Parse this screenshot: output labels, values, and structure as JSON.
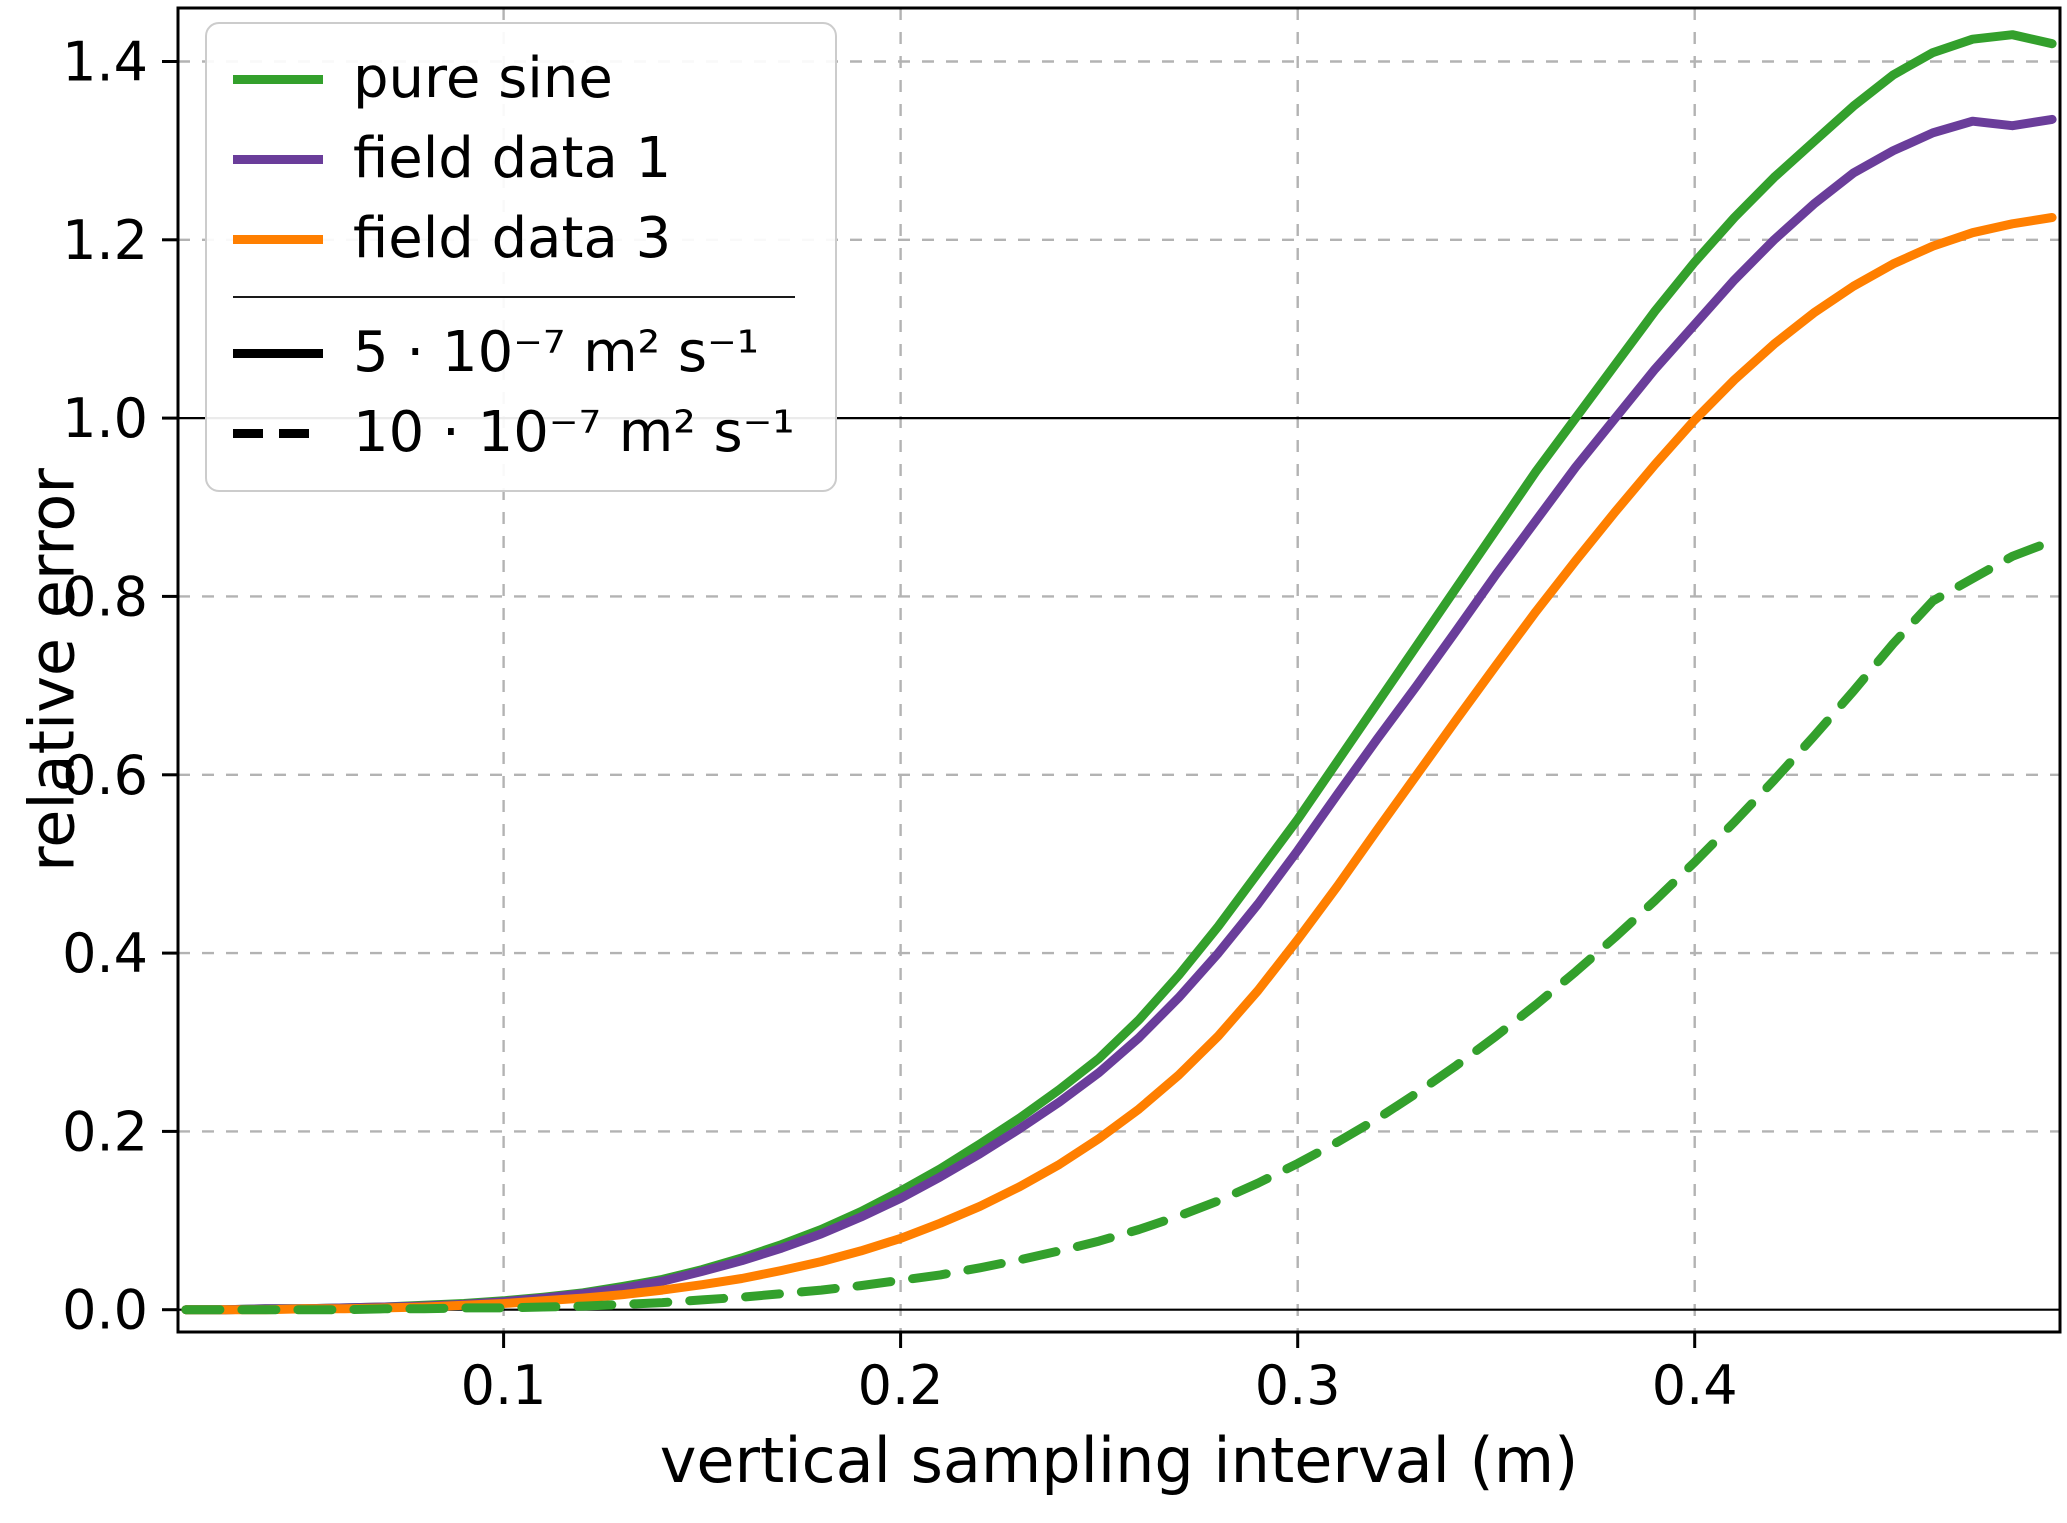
{
  "figure": {
    "background": "#ffffff"
  },
  "legend": {
    "series_items": [
      {
        "label": "pure sine",
        "color": "#33a02c",
        "style": "solid"
      },
      {
        "label": "field data 1",
        "color": "#6a3d9a",
        "style": "solid"
      },
      {
        "label": "field data 3",
        "color": "#ff7f00",
        "style": "solid"
      }
    ],
    "style_items": [
      {
        "label": "5 · 10⁻⁷ m² s⁻¹",
        "color": "#000000",
        "style": "solid"
      },
      {
        "label": "10 · 10⁻⁷ m² s⁻¹",
        "color": "#000000",
        "style": "dashed"
      }
    ]
  },
  "chart_data": {
    "type": "line",
    "title": "",
    "xlabel": "vertical sampling interval (m)",
    "ylabel": "relative error",
    "xlim": [
      0.018,
      0.492
    ],
    "ylim": [
      -0.025,
      1.46
    ],
    "xticks": [
      0.1,
      0.2,
      0.3,
      0.4
    ],
    "xtick_labels": [
      "0.1",
      "0.2",
      "0.3",
      "0.4"
    ],
    "yticks": [
      0.0,
      0.2,
      0.4,
      0.6,
      0.8,
      1.0,
      1.2,
      1.4
    ],
    "ytick_labels": [
      "0.0",
      "0.2",
      "0.4",
      "0.6",
      "0.8",
      "1.0",
      "1.2",
      "1.4"
    ],
    "grid": {
      "dashed_color": "#b3b3b3",
      "solid_lines_y": [
        0.0,
        1.0
      ],
      "legend_position": "upper left"
    },
    "x": [
      0.02,
      0.03,
      0.04,
      0.05,
      0.06,
      0.07,
      0.08,
      0.09,
      0.1,
      0.11,
      0.12,
      0.13,
      0.14,
      0.15,
      0.16,
      0.17,
      0.18,
      0.19,
      0.2,
      0.21,
      0.22,
      0.23,
      0.24,
      0.25,
      0.26,
      0.27,
      0.28,
      0.29,
      0.3,
      0.31,
      0.32,
      0.33,
      0.34,
      0.35,
      0.36,
      0.37,
      0.38,
      0.39,
      0.4,
      0.41,
      0.42,
      0.43,
      0.44,
      0.45,
      0.46,
      0.47,
      0.48,
      0.49
    ],
    "series": [
      {
        "name": "pure sine (5e-7)",
        "color": "#33a02c",
        "linestyle": "solid",
        "values": [
          0.0,
          0.0,
          0.001,
          0.001,
          0.002,
          0.003,
          0.005,
          0.007,
          0.01,
          0.014,
          0.019,
          0.026,
          0.034,
          0.045,
          0.058,
          0.073,
          0.09,
          0.11,
          0.133,
          0.158,
          0.186,
          0.215,
          0.247,
          0.282,
          0.325,
          0.375,
          0.43,
          0.49,
          0.55,
          0.615,
          0.68,
          0.745,
          0.81,
          0.875,
          0.94,
          1.0,
          1.06,
          1.12,
          1.175,
          1.225,
          1.27,
          1.31,
          1.35,
          1.385,
          1.41,
          1.425,
          1.43,
          1.42
        ]
      },
      {
        "name": "field data 1 (5e-7)",
        "color": "#6a3d9a",
        "linestyle": "solid",
        "values": [
          0.0,
          0.0,
          0.001,
          0.001,
          0.002,
          0.003,
          0.004,
          0.006,
          0.009,
          0.013,
          0.018,
          0.024,
          0.032,
          0.043,
          0.055,
          0.069,
          0.085,
          0.104,
          0.125,
          0.149,
          0.175,
          0.203,
          0.233,
          0.266,
          0.305,
          0.35,
          0.4,
          0.455,
          0.515,
          0.578,
          0.64,
          0.7,
          0.762,
          0.825,
          0.885,
          0.945,
          1.0,
          1.055,
          1.105,
          1.155,
          1.2,
          1.24,
          1.275,
          1.3,
          1.32,
          1.333,
          1.328,
          1.335
        ]
      },
      {
        "name": "field data 3 (5e-7)",
        "color": "#ff7f00",
        "linestyle": "solid",
        "values": [
          0.0,
          0.0,
          0.0,
          0.001,
          0.001,
          0.002,
          0.003,
          0.005,
          0.007,
          0.01,
          0.013,
          0.017,
          0.022,
          0.028,
          0.035,
          0.044,
          0.054,
          0.066,
          0.08,
          0.097,
          0.116,
          0.138,
          0.163,
          0.192,
          0.225,
          0.263,
          0.307,
          0.358,
          0.415,
          0.475,
          0.538,
          0.6,
          0.662,
          0.723,
          0.783,
          0.84,
          0.895,
          0.948,
          0.998,
          1.043,
          1.083,
          1.118,
          1.148,
          1.173,
          1.193,
          1.208,
          1.218,
          1.225
        ]
      },
      {
        "name": "pure sine (10e-7)",
        "color": "#33a02c",
        "linestyle": "dashed",
        "values": [
          0.0,
          0.0,
          0.0,
          0.0,
          0.0,
          0.001,
          0.001,
          0.002,
          0.002,
          0.003,
          0.004,
          0.006,
          0.008,
          0.011,
          0.014,
          0.018,
          0.022,
          0.027,
          0.033,
          0.039,
          0.047,
          0.056,
          0.066,
          0.077,
          0.09,
          0.105,
          0.122,
          0.142,
          0.164,
          0.188,
          0.214,
          0.243,
          0.274,
          0.307,
          0.342,
          0.379,
          0.418,
          0.459,
          0.502,
          0.547,
          0.594,
          0.643,
          0.694,
          0.747,
          0.795,
          0.82,
          0.845,
          0.862
        ]
      }
    ]
  }
}
